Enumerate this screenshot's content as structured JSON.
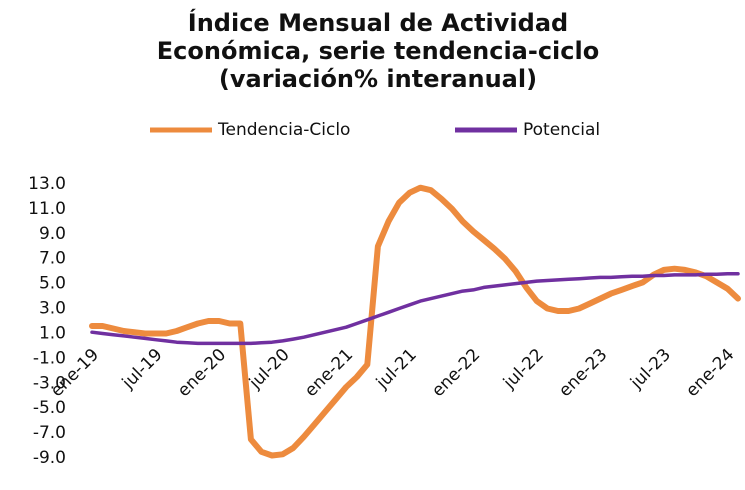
{
  "chart_data": {
    "type": "line",
    "title_lines": [
      "Índice Mensual de Actividad",
      "Económica, serie tendencia-ciclo",
      "(variación% interanual)"
    ],
    "categories": [
      "ene-19",
      null,
      null,
      null,
      null,
      null,
      "jul-19",
      null,
      null,
      null,
      null,
      null,
      "ene-20",
      null,
      null,
      null,
      null,
      null,
      "jul-20",
      null,
      null,
      null,
      null,
      null,
      "ene-21",
      null,
      null,
      null,
      null,
      null,
      "jul-21",
      null,
      null,
      null,
      null,
      null,
      "ene-22",
      null,
      null,
      null,
      null,
      null,
      "jul-22",
      null,
      null,
      null,
      null,
      null,
      "ene-23",
      null,
      null,
      null,
      null,
      null,
      "jul-23",
      null,
      null,
      null,
      null,
      null,
      "ene-24",
      null
    ],
    "series": [
      {
        "name": "Tendencia-Ciclo",
        "color": "#ED8B3E",
        "values": [
          1.6,
          1.6,
          1.4,
          1.2,
          1.1,
          1.0,
          1.0,
          1.0,
          1.2,
          1.5,
          1.8,
          2.0,
          2.0,
          1.8,
          1.8,
          -7.5,
          -8.5,
          -8.8,
          -8.7,
          -8.2,
          -7.3,
          -6.3,
          -5.3,
          -4.3,
          -3.3,
          -2.5,
          -1.5,
          8.0,
          10.0,
          11.5,
          12.3,
          12.7,
          12.5,
          11.8,
          11.0,
          10.0,
          9.2,
          8.5,
          7.8,
          7.0,
          6.0,
          4.7,
          3.6,
          3.0,
          2.8,
          2.8,
          3.0,
          3.4,
          3.8,
          4.2,
          4.5,
          4.8,
          5.1,
          5.7,
          6.1,
          6.2,
          6.1,
          5.9,
          5.6,
          5.1,
          4.6,
          3.8
        ]
      },
      {
        "name": "Potencial",
        "color": "#7030A0",
        "values": [
          1.1,
          1.0,
          0.9,
          0.8,
          0.7,
          0.6,
          0.5,
          0.4,
          0.3,
          0.25,
          0.2,
          0.2,
          0.2,
          0.2,
          0.2,
          0.2,
          0.25,
          0.3,
          0.4,
          0.55,
          0.7,
          0.9,
          1.1,
          1.3,
          1.5,
          1.8,
          2.1,
          2.4,
          2.7,
          3.0,
          3.3,
          3.6,
          3.8,
          4.0,
          4.2,
          4.4,
          4.5,
          4.7,
          4.8,
          4.9,
          5.0,
          5.1,
          5.2,
          5.25,
          5.3,
          5.35,
          5.4,
          5.45,
          5.5,
          5.5,
          5.55,
          5.6,
          5.6,
          5.65,
          5.65,
          5.7,
          5.7,
          5.7,
          5.75,
          5.75,
          5.8,
          5.8
        ]
      }
    ],
    "ylim": [
      -9,
      13
    ],
    "yticks": [
      {
        "value": -9,
        "label": "-9.0"
      },
      {
        "value": -7,
        "label": "-7.0"
      },
      {
        "value": -5,
        "label": "-5.0"
      },
      {
        "value": -3,
        "label": "-3.0"
      },
      {
        "value": -1,
        "label": "-1.0"
      },
      {
        "value": 1,
        "label": "1.0"
      },
      {
        "value": 3,
        "label": "3.0"
      },
      {
        "value": 5,
        "label": "5.0"
      },
      {
        "value": 7,
        "label": "7.0"
      },
      {
        "value": 9,
        "label": "9.0"
      },
      {
        "value": 11,
        "label": "11.0"
      },
      {
        "value": 13,
        "label": "13.0"
      }
    ],
    "grid": false
  }
}
